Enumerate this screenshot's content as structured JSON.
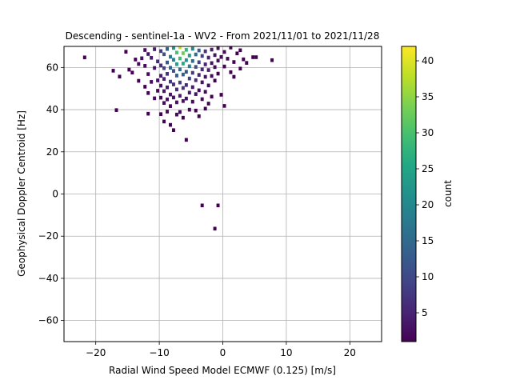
{
  "chart_data": {
    "type": "heatmap",
    "title": "Descending - sentinel-1a - WV2 - From 2021/11/01 to 2021/11/28",
    "xlabel": "Radial Wind Speed Model ECMWF (0.125) [m/s]",
    "ylabel": "Geophysical Doppler Centroid [Hz]",
    "xlim": [
      -25,
      25
    ],
    "ylim": [
      -70,
      70
    ],
    "xticks": [
      -20,
      -10,
      0,
      10,
      20
    ],
    "xtick_labels": [
      "−20",
      "−10",
      "0",
      "10",
      "20"
    ],
    "yticks": [
      -60,
      -40,
      -20,
      0,
      20,
      40,
      60
    ],
    "ytick_labels": [
      "−60",
      "−40",
      "−20",
      "0",
      "20",
      "40",
      "60"
    ],
    "grid": true,
    "colormap": "viridis",
    "colorbar": {
      "label": "count",
      "range": [
        1,
        42
      ],
      "ticks": [
        5,
        10,
        15,
        20,
        25,
        30,
        35,
        40
      ],
      "tick_labels": [
        "5",
        "10",
        "15",
        "20",
        "25",
        "30",
        "35",
        "40"
      ]
    },
    "bin_size": [
      0.5,
      1.75
    ],
    "bins": [
      [
        -22,
        63.9,
        1
      ],
      [
        -17.5,
        57.6,
        1
      ],
      [
        -17,
        38.9,
        1
      ],
      [
        -16.5,
        54.8,
        1
      ],
      [
        -15.5,
        66.6,
        1
      ],
      [
        -15,
        58.1,
        1
      ],
      [
        -14.5,
        56.7,
        1
      ],
      [
        -14,
        62.9,
        1
      ],
      [
        -13.5,
        60.8,
        2
      ],
      [
        -13.5,
        52.8,
        1
      ],
      [
        -13,
        63.5,
        3
      ],
      [
        -12.5,
        67.4,
        2
      ],
      [
        -12.5,
        59.9,
        2
      ],
      [
        -12.5,
        50.0,
        1
      ],
      [
        -12,
        65.5,
        3
      ],
      [
        -12,
        56.0,
        2
      ],
      [
        -12,
        47.0,
        1
      ],
      [
        -12,
        37.2,
        1
      ],
      [
        -11.5,
        63.7,
        4
      ],
      [
        -11.5,
        52.3,
        2
      ],
      [
        -11,
        67.8,
        4
      ],
      [
        -11,
        58.9,
        3
      ],
      [
        -11,
        44.5,
        2
      ],
      [
        -10.5,
        62.0,
        6
      ],
      [
        -10.5,
        53.0,
        3
      ],
      [
        -10.5,
        48.1,
        2
      ],
      [
        -10,
        66.9,
        8
      ],
      [
        -10,
        60.1,
        7
      ],
      [
        -10,
        55.2,
        4
      ],
      [
        -10,
        50.5,
        3
      ],
      [
        -10,
        44.8,
        2
      ],
      [
        -10,
        37.0,
        1
      ],
      [
        -9.5,
        65.4,
        11
      ],
      [
        -9.5,
        58.8,
        9
      ],
      [
        -9.5,
        53.7,
        5
      ],
      [
        -9.5,
        47.9,
        3
      ],
      [
        -9.5,
        42.3,
        2
      ],
      [
        -9.5,
        33.5,
        1
      ],
      [
        -9,
        67.9,
        14
      ],
      [
        -9,
        61.5,
        12
      ],
      [
        -9,
        56.1,
        7
      ],
      [
        -9,
        49.7,
        4
      ],
      [
        -9,
        44.0,
        3
      ],
      [
        -9,
        38.2,
        2
      ],
      [
        -8.5,
        64.2,
        18
      ],
      [
        -8.5,
        59.0,
        14
      ],
      [
        -8.5,
        52.4,
        8
      ],
      [
        -8.5,
        46.3,
        4
      ],
      [
        -8.5,
        40.8,
        2
      ],
      [
        -8.5,
        31.9,
        1
      ],
      [
        -8,
        68.4,
        22
      ],
      [
        -8,
        62.8,
        19
      ],
      [
        -8,
        57.5,
        11
      ],
      [
        -8,
        51.1,
        6
      ],
      [
        -8,
        44.9,
        3
      ],
      [
        -8,
        29.4,
        1
      ],
      [
        -7.5,
        66.2,
        30
      ],
      [
        -7.5,
        60.7,
        24
      ],
      [
        -7.5,
        55.3,
        13
      ],
      [
        -7.5,
        48.7,
        6
      ],
      [
        -7.5,
        42.6,
        3
      ],
      [
        -7.5,
        36.8,
        2
      ],
      [
        -7,
        68.7,
        38
      ],
      [
        -7,
        63.4,
        29
      ],
      [
        -7,
        58.2,
        16
      ],
      [
        -7,
        52.0,
        8
      ],
      [
        -7,
        45.7,
        4
      ],
      [
        -7,
        38.0,
        2
      ],
      [
        -6.5,
        65.9,
        33
      ],
      [
        -6.5,
        61.0,
        26
      ],
      [
        -6.5,
        55.8,
        14
      ],
      [
        -6.5,
        49.4,
        7
      ],
      [
        -6.5,
        43.2,
        3
      ],
      [
        -6.5,
        35.3,
        1
      ],
      [
        -6,
        67.5,
        28
      ],
      [
        -6,
        62.6,
        22
      ],
      [
        -6,
        57.1,
        12
      ],
      [
        -6,
        50.8,
        6
      ],
      [
        -6,
        44.4,
        3
      ],
      [
        -6,
        24.8,
        1
      ],
      [
        -5.5,
        64.8,
        24
      ],
      [
        -5.5,
        59.7,
        18
      ],
      [
        -5.5,
        53.9,
        9
      ],
      [
        -5.5,
        47.2,
        4
      ],
      [
        -5.5,
        39.1,
        2
      ],
      [
        -5,
        68.0,
        20
      ],
      [
        -5,
        62.2,
        15
      ],
      [
        -5,
        56.6,
        8
      ],
      [
        -5,
        49.8,
        4
      ],
      [
        -5,
        42.9,
        2
      ],
      [
        -4.5,
        65.3,
        16
      ],
      [
        -4.5,
        59.4,
        11
      ],
      [
        -4.5,
        53.1,
        6
      ],
      [
        -4.5,
        46.5,
        3
      ],
      [
        -4.5,
        38.7,
        1
      ],
      [
        -4,
        67.2,
        13
      ],
      [
        -4,
        61.6,
        9
      ],
      [
        -4,
        55.6,
        5
      ],
      [
        -4,
        48.3,
        2
      ],
      [
        -4,
        36.0,
        1
      ],
      [
        -3.5,
        64.6,
        9
      ],
      [
        -3.5,
        58.2,
        6
      ],
      [
        -3.5,
        52.1,
        3
      ],
      [
        -3.5,
        44.1,
        2
      ],
      [
        -3.5,
        -6.3,
        1
      ],
      [
        -3,
        66.8,
        7
      ],
      [
        -3,
        60.6,
        5
      ],
      [
        -3,
        54.7,
        3
      ],
      [
        -3,
        47.6,
        2
      ],
      [
        -3,
        39.6,
        1
      ],
      [
        -2.5,
        63.8,
        5
      ],
      [
        -2.5,
        57.9,
        4
      ],
      [
        -2.5,
        50.6,
        2
      ],
      [
        -2.5,
        42.0,
        1
      ],
      [
        -2,
        67.6,
        4
      ],
      [
        -2,
        61.2,
        3
      ],
      [
        -2,
        55.1,
        2
      ],
      [
        -2,
        45.3,
        1
      ],
      [
        -1.5,
        65.0,
        3
      ],
      [
        -1.5,
        59.3,
        2
      ],
      [
        -1.5,
        52.9,
        1
      ],
      [
        -1.5,
        -17.3,
        1
      ],
      [
        -1,
        68.3,
        3
      ],
      [
        -1,
        62.4,
        2
      ],
      [
        -1,
        56.2,
        1
      ],
      [
        -1,
        -6.3,
        1
      ],
      [
        -0.5,
        64.1,
        2
      ],
      [
        -0.5,
        46.2,
        1
      ],
      [
        0,
        66.5,
        2
      ],
      [
        0,
        59.6,
        1
      ],
      [
        0,
        40.9,
        1
      ],
      [
        0.5,
        63.3,
        2
      ],
      [
        1,
        68.6,
        1
      ],
      [
        1,
        56.9,
        1
      ],
      [
        1.5,
        61.7,
        1
      ],
      [
        1.5,
        54.7,
        1
      ],
      [
        2,
        65.8,
        1
      ],
      [
        2.5,
        58.6,
        1
      ],
      [
        2.5,
        67.3,
        1
      ],
      [
        3,
        63.0,
        1
      ],
      [
        3.5,
        61.3,
        1
      ],
      [
        4.5,
        64.0,
        1
      ],
      [
        5,
        64.0,
        1
      ],
      [
        7.5,
        62.6,
        1
      ]
    ]
  }
}
